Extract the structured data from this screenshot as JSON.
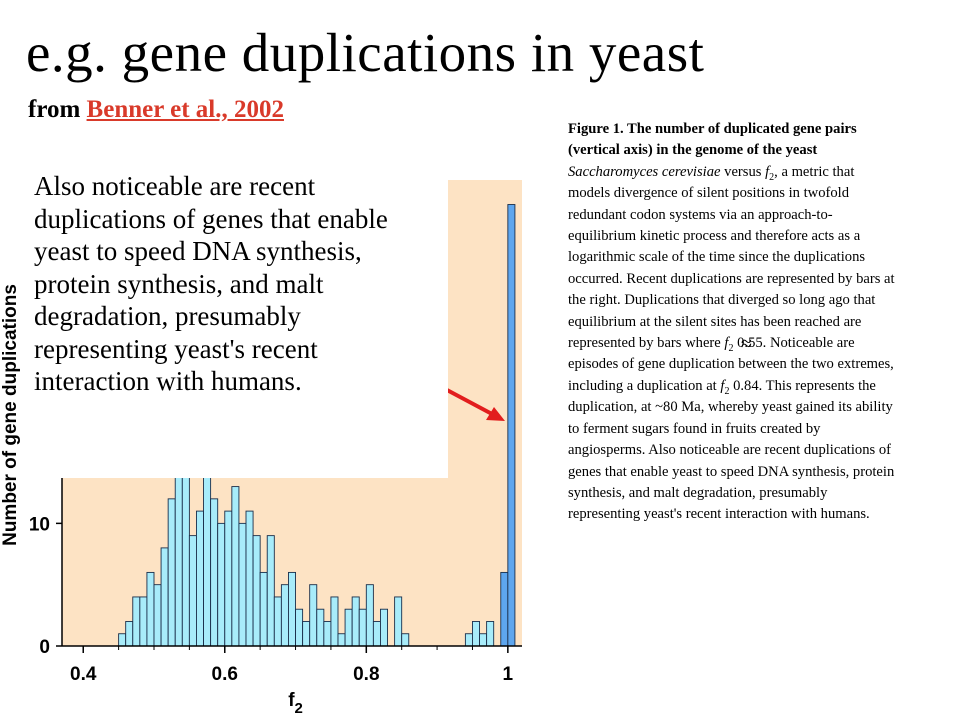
{
  "slide": {
    "title": "e.g. gene duplications in yeast",
    "source_prefix": "from ",
    "source_link": "Benner et al., 2002 ",
    "callout": "Also noticeable are recent duplications of genes that enable yeast to speed DNA synthesis, protein synthesis, and malt degradation, presumably representing yeast's recent interaction with humans."
  },
  "caption": {
    "lead": "Figure 1. The number of duplicated gene pairs (vertical axis) in the genome of the yeast ",
    "species": "Saccharomyces cerevisiae",
    "p1": " versus ",
    "f": "f",
    "sub2": "2",
    "p2": ", a metric that models divergence of silent positions in twofold redundant codon systems via an approach-to-equilibrium kinetic process and therefore acts as a logarithmic scale of the time since the duplications occurred. Recent duplications are represented by bars at the right. Duplications that diverged so long ago that equilibrium at the silent sites has been reached are represented by bars where ",
    "p3": " 0.55. Noticeable are episodes of gene duplication between the two extremes, including a duplication at ",
    "p4": " 0.84. This represents the duplication, at ~80 Ma, whereby yeast gained its ability to ferment sugars found in fruits created by angiosperms. Also noticeable are recent duplications of genes that enable yeast to speed DNA synthesis, protein synthesis, and malt degradation, presumably representing yeast's recent interaction with humans.",
    "approx_symbol": "≈"
  },
  "chart_data": {
    "type": "bar",
    "title": "",
    "xlabel": "f",
    "xlabel_sub": "2",
    "ylabel": "Number of gene duplications",
    "x_ticks": [
      "0.4",
      "0.6",
      "0.8",
      "1"
    ],
    "x_tick_values": [
      0.4,
      0.6,
      0.8,
      1.0
    ],
    "y_ticks": [
      "0",
      "10"
    ],
    "y_tick_values": [
      0,
      10
    ],
    "xlim": [
      0.37,
      1.02
    ],
    "ylim": [
      0,
      38
    ],
    "bin_width": 0.01,
    "bin_left": [
      0.45,
      0.46,
      0.47,
      0.48,
      0.49,
      0.5,
      0.51,
      0.52,
      0.53,
      0.54,
      0.55,
      0.56,
      0.57,
      0.58,
      0.59,
      0.6,
      0.61,
      0.62,
      0.63,
      0.64,
      0.65,
      0.66,
      0.67,
      0.68,
      0.69,
      0.7,
      0.71,
      0.72,
      0.73,
      0.74,
      0.75,
      0.76,
      0.77,
      0.78,
      0.79,
      0.8,
      0.81,
      0.82,
      0.83,
      0.84,
      0.85,
      0.86,
      0.87,
      0.88,
      0.89,
      0.9,
      0.91,
      0.92,
      0.93,
      0.94,
      0.95,
      0.96,
      0.97,
      0.98,
      0.99,
      1.0
    ],
    "values": [
      1,
      2,
      4,
      4,
      6,
      5,
      8,
      12,
      18,
      14,
      9,
      11,
      17,
      12,
      10,
      11,
      13,
      10,
      11,
      9,
      6,
      9,
      4,
      5,
      6,
      3,
      2,
      5,
      3,
      2,
      4,
      1,
      3,
      4,
      3,
      5,
      2,
      3,
      0,
      4,
      1,
      0,
      0,
      0,
      0,
      0,
      0,
      0,
      0,
      1,
      2,
      1,
      2,
      0,
      6,
      36
    ],
    "colors": {
      "background": "#fde3c4",
      "bar_old": "#a8ecfa",
      "bar_recent": "#5ea6ee",
      "bar_edge": "#1a2e4a",
      "arrow": "#e21d1d"
    }
  }
}
